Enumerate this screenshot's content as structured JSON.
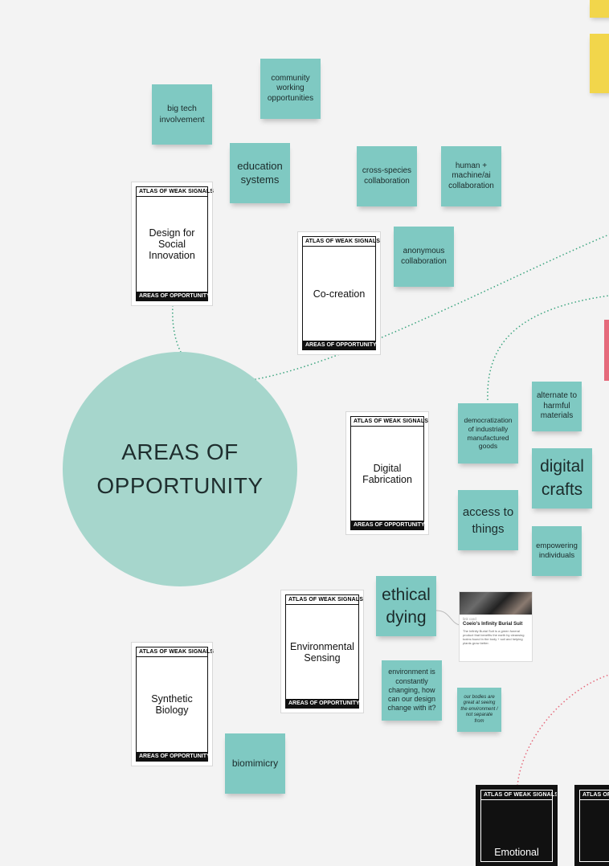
{
  "circle": {
    "line1": "AREAS OF",
    "line2": "OPPORTUNITY"
  },
  "card_header": "ATLAS OF WEAK SIGNALS",
  "card_footer": "AREAS OF OPPORTUNITY",
  "cards": {
    "design_social_innovation": "Design for Social Innovation",
    "co_creation": "Co-creation",
    "digital_fabrication": "Digital Fabrication",
    "environmental_sensing": "Environmental Sensing",
    "synthetic_biology": "Synthetic Biology",
    "emotional": "Emotional"
  },
  "stickies": {
    "community_working": "community working opportunities",
    "big_tech": "big tech involvement",
    "education_systems": "education systems",
    "cross_species": "cross-species collaboration",
    "human_machine": "human + machine/ai collaboration",
    "anonymous_collab": "anonymous collaboration",
    "alternate_materials": "alternate to harmful materials",
    "democratization": "democratization of industrially manufactured goods",
    "digital_crafts": "digital crafts",
    "access_to_things": "access to things",
    "empowering_individuals": "empowering individuals",
    "ethical_dying": "ethical dying",
    "environment_changing": "environment is constantly changing, how can our design change with it?",
    "our_bodies": "our bodies are great at seeing the environment / not separate from",
    "biomimicry": "biomimicry"
  },
  "thumbnail": {
    "meta": "link card",
    "title": "Coeio's Infinity Burial Suit",
    "description": "The Infinity Burial Suit is a green funeral product that benefits the earth by cleansing toxins found in the body + soil and helping plants grow better."
  },
  "colors": {
    "sticky": "#7fc9c2",
    "circle": "#a6d6cc",
    "connector": "#3aa47e",
    "connector_pink": "#e56a7b",
    "yellow": "#f2d64b",
    "pink": "#e56a7b"
  }
}
